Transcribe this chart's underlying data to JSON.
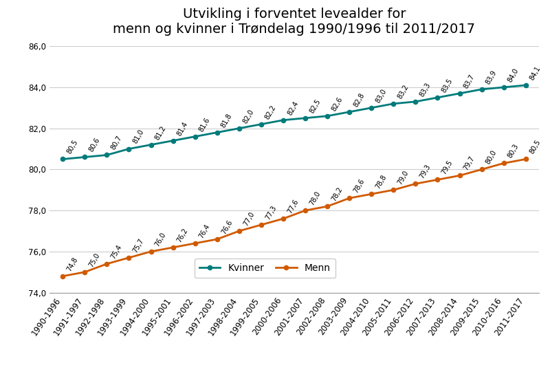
{
  "title": "Utvikling i forventet levealder for\nmenn og kvinner i Trøndelag 1990/1996 til 2011/2017",
  "categories": [
    "1990-1996",
    "1991-1997",
    "1992-1998",
    "1993-1999",
    "1994-2000",
    "1995-2001",
    "1996-2002",
    "1997-2003",
    "1998-2004",
    "1999-2005",
    "2000-2006",
    "2001-2007",
    "2002-2008",
    "2003-2009",
    "2004-2010",
    "2005-2011",
    "2006-2012",
    "2007-2013",
    "2008-2014",
    "2009-2015",
    "2010-2016",
    "2011-2017"
  ],
  "kvinner": [
    80.5,
    80.6,
    80.7,
    81.0,
    81.2,
    81.4,
    81.6,
    81.8,
    82.0,
    82.2,
    82.4,
    82.5,
    82.6,
    82.8,
    83.0,
    83.2,
    83.3,
    83.5,
    83.7,
    83.9,
    84.0,
    84.1
  ],
  "menn": [
    74.8,
    75.0,
    75.4,
    75.7,
    76.0,
    76.2,
    76.4,
    76.6,
    77.0,
    77.3,
    77.6,
    78.0,
    78.2,
    78.6,
    78.8,
    79.0,
    79.3,
    79.5,
    79.7,
    80.0,
    80.3,
    80.5
  ],
  "kvinner_color": "#007b7b",
  "menn_color": "#d05a00",
  "ylim": [
    74.0,
    86.0
  ],
  "yticks": [
    74.0,
    76.0,
    78.0,
    80.0,
    82.0,
    84.0,
    86.0
  ],
  "grid_color": "#cccccc",
  "background_color": "#ffffff",
  "title_fontsize": 14,
  "label_fontsize": 7.2,
  "tick_fontsize": 8.5,
  "legend_fontsize": 10
}
